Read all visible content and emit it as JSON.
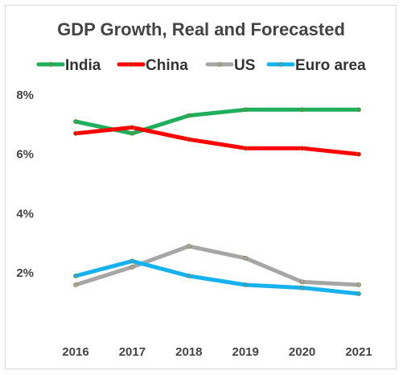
{
  "chart_data": {
    "type": "line",
    "title": "GDP Growth, Real and Forecasted",
    "xlabel": "",
    "ylabel": "",
    "categories": [
      "2016",
      "2017",
      "2018",
      "2019",
      "2020",
      "2021"
    ],
    "ylim": [
      0,
      8
    ],
    "yticks": [
      2,
      4,
      6,
      8
    ],
    "ytick_labels": [
      "2%",
      "4%",
      "6%",
      "8%"
    ],
    "grid": false,
    "legend_position": "top",
    "series": [
      {
        "name": "India",
        "color": "#1fae5b",
        "values": [
          7.1,
          6.7,
          7.3,
          7.5,
          7.5,
          7.5
        ]
      },
      {
        "name": "China",
        "color": "#ff0000",
        "values": [
          6.7,
          6.9,
          6.5,
          6.2,
          6.2,
          6.0
        ]
      },
      {
        "name": "US",
        "color": "#a6a6a6",
        "values": [
          1.6,
          2.2,
          2.9,
          2.5,
          1.7,
          1.6
        ]
      },
      {
        "name": "Euro area",
        "color": "#16b2ef",
        "values": [
          1.9,
          2.4,
          1.9,
          1.6,
          1.5,
          1.3
        ]
      }
    ]
  }
}
